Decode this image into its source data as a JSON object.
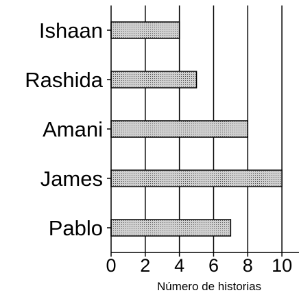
{
  "chart_data": {
    "type": "bar",
    "orientation": "horizontal",
    "categories": [
      "Ishaan",
      "Rashida",
      "Amani",
      "James",
      "Pablo"
    ],
    "values": [
      4,
      5,
      8,
      10,
      7
    ],
    "xlabel": "Número de historias",
    "ylabel": "",
    "title": "",
    "xlim": [
      0,
      11
    ],
    "xticks": [
      0,
      2,
      4,
      6,
      8,
      10
    ],
    "grid": "vertical",
    "bar_fill": "stippled gray",
    "colors": {
      "bar_fill": "#d0d0d0",
      "bar_dots": "#555555",
      "stroke": "#000000"
    }
  }
}
